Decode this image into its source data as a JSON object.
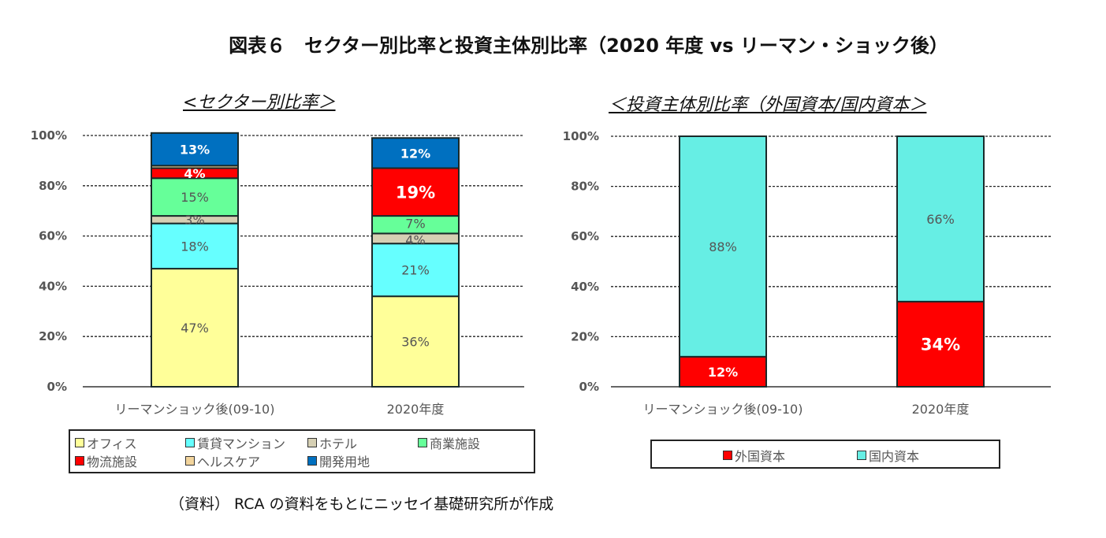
{
  "title": "図表６　セクター別比率と投資主体別比率（2020 年度 vs リーマン・ショック後）",
  "note": "（資料） RCA の資料をもとにニッセイ基礎研究所が作成",
  "chart_data": [
    {
      "type": "bar",
      "stacked": true,
      "title": "<セクター別比率＞",
      "categories": [
        "リーマンショック後(09-10)",
        "2020年度"
      ],
      "ylim": [
        0,
        100
      ],
      "yticks": [
        "0%",
        "20%",
        "40%",
        "60%",
        "80%",
        "100%"
      ],
      "grid": true,
      "legend_position": "bottom",
      "series": [
        {
          "name": "オフィス",
          "values": [
            47,
            36
          ],
          "color": "#FFFF99",
          "label_color": "#555555"
        },
        {
          "name": "賃貸マンション",
          "values": [
            18,
            21
          ],
          "color": "#66FFFF",
          "label_color": "#555555"
        },
        {
          "name": "ホテル",
          "values": [
            3,
            4
          ],
          "color": "#D6D0B4",
          "label_color": "#555555"
        },
        {
          "name": "商業施設",
          "values": [
            15,
            7
          ],
          "color": "#66FF99",
          "label_color": "#555555"
        },
        {
          "name": "物流施設",
          "values": [
            4,
            19
          ],
          "color": "#FF0000",
          "label_color": "#FFFFFF"
        },
        {
          "name": "ヘルスケア",
          "values": [
            1,
            0
          ],
          "color": "#F2D49C",
          "label_color": "#555555",
          "hide_labels": true
        },
        {
          "name": "開発用地",
          "values": [
            13,
            12
          ],
          "color": "#0070C0",
          "label_color": "#FFFFFF"
        }
      ]
    },
    {
      "type": "bar",
      "stacked": true,
      "title": "＜投資主体別比率（外国資本/国内資本＞",
      "categories": [
        "リーマンショック後(09-10)",
        "2020年度"
      ],
      "ylim": [
        0,
        100
      ],
      "yticks": [
        "0%",
        "20%",
        "40%",
        "60%",
        "80%",
        "100%"
      ],
      "grid": true,
      "legend_position": "bottom",
      "series": [
        {
          "name": "外国資本",
          "values": [
            12,
            34
          ],
          "color": "#FF0000",
          "label_color": "#FFFFFF"
        },
        {
          "name": "国内資本",
          "values": [
            88,
            66
          ],
          "color": "#66EEE4",
          "label_color": "#555555"
        }
      ]
    }
  ]
}
